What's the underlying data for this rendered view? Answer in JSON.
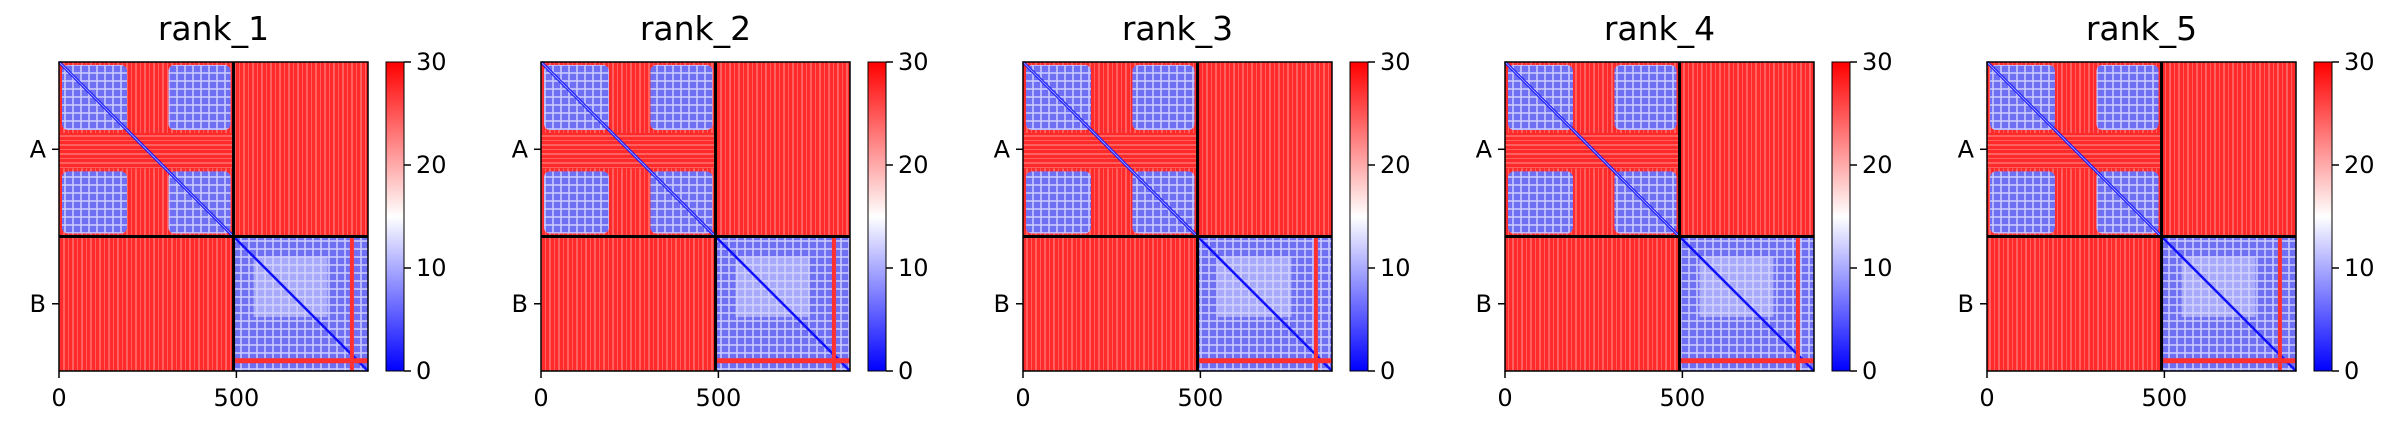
{
  "figure": {
    "colormap": "bwr",
    "colors": {
      "low": "#0000ff",
      "mid": "#ffffff",
      "high": "#ff0000",
      "frame": "#000000"
    }
  },
  "chart_data": [
    {
      "type": "heatmap",
      "title": "rank_1",
      "xlabel": "",
      "ylabel": "",
      "xlim": [
        0,
        871
      ],
      "ylim": [
        0,
        871
      ],
      "x_ticks": [
        0,
        500
      ],
      "y_tick_labels": [
        "A",
        "B"
      ],
      "chain_break": 492,
      "color_range": [
        0,
        30
      ],
      "colorbar_ticks": [
        0,
        10,
        20,
        30
      ],
      "blocks": {
        "A_A": "low except stripe 200-300 high",
        "A_B": "high",
        "B_A": "high",
        "B_B": "low"
      }
    },
    {
      "type": "heatmap",
      "title": "rank_2",
      "xlabel": "",
      "ylabel": "",
      "xlim": [
        0,
        871
      ],
      "ylim": [
        0,
        871
      ],
      "x_ticks": [
        0,
        500
      ],
      "y_tick_labels": [
        "A",
        "B"
      ],
      "chain_break": 492,
      "color_range": [
        0,
        30
      ],
      "colorbar_ticks": [
        0,
        10,
        20,
        30
      ],
      "blocks": {
        "A_A": "low except stripe 200-300 high",
        "A_B": "high",
        "B_A": "high",
        "B_B": "low"
      }
    },
    {
      "type": "heatmap",
      "title": "rank_3",
      "xlabel": "",
      "ylabel": "",
      "xlim": [
        0,
        871
      ],
      "ylim": [
        0,
        871
      ],
      "x_ticks": [
        0,
        500
      ],
      "y_tick_labels": [
        "A",
        "B"
      ],
      "chain_break": 492,
      "color_range": [
        0,
        30
      ],
      "colorbar_ticks": [
        0,
        10,
        20,
        30
      ],
      "blocks": {
        "A_A": "low except stripe 200-300 high",
        "A_B": "high",
        "B_A": "high",
        "B_B": "low"
      }
    },
    {
      "type": "heatmap",
      "title": "rank_4",
      "xlabel": "",
      "ylabel": "",
      "xlim": [
        0,
        871
      ],
      "ylim": [
        0,
        871
      ],
      "x_ticks": [
        0,
        500
      ],
      "y_tick_labels": [
        "A",
        "B"
      ],
      "chain_break": 492,
      "color_range": [
        0,
        30
      ],
      "colorbar_ticks": [
        0,
        10,
        20,
        30
      ],
      "blocks": {
        "A_A": "low except stripe 200-300 high",
        "A_B": "high",
        "B_A": "high",
        "B_B": "low"
      }
    },
    {
      "type": "heatmap",
      "title": "rank_5",
      "xlabel": "",
      "ylabel": "",
      "xlim": [
        0,
        871
      ],
      "ylim": [
        0,
        871
      ],
      "x_ticks": [
        0,
        500
      ],
      "y_tick_labels": [
        "A",
        "B"
      ],
      "chain_break": 492,
      "color_range": [
        0,
        30
      ],
      "colorbar_ticks": [
        0,
        10,
        20,
        30
      ],
      "blocks": {
        "A_A": "low except stripe 200-300 high",
        "A_B": "high",
        "B_A": "high",
        "B_B": "low"
      }
    }
  ]
}
